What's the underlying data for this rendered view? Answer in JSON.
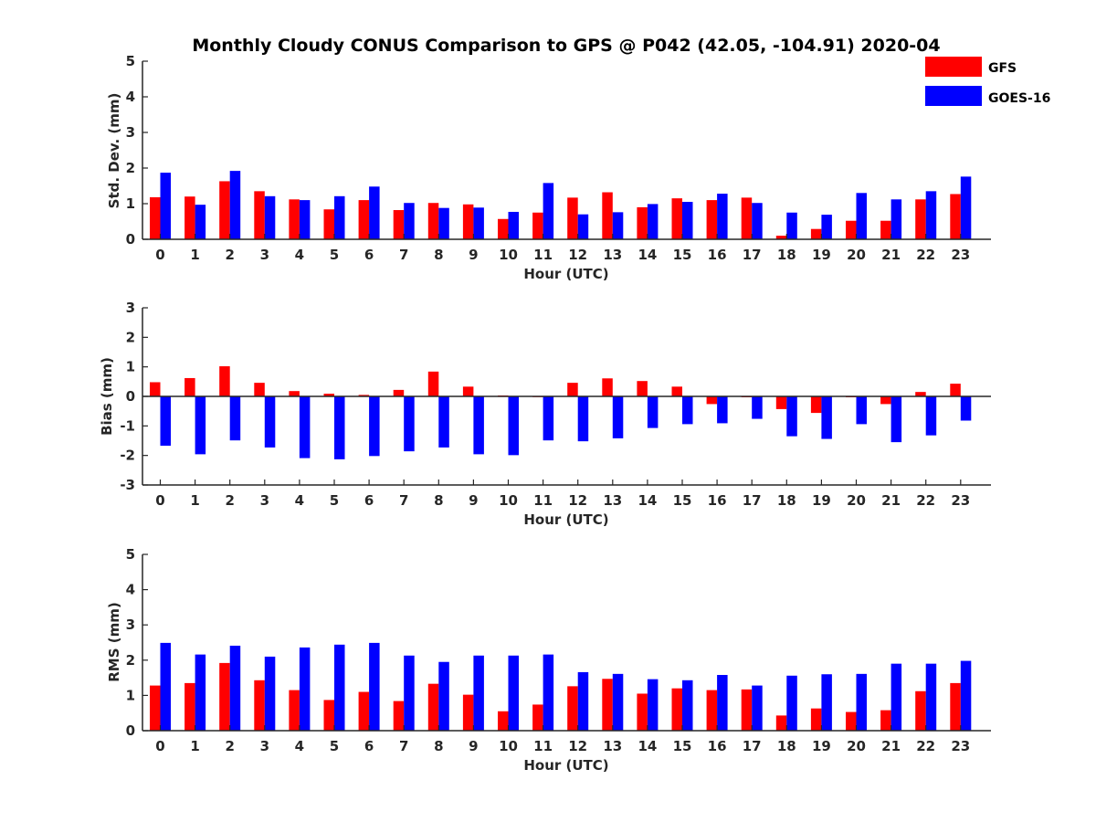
{
  "title": "Monthly Cloudy CONUS Comparison to GPS @ P042 (42.05, -104.91) 2020-04",
  "colors": {
    "gfs": "#ff0000",
    "goes": "#0000ff",
    "axis": "#262626"
  },
  "legend": [
    {
      "name": "GFS",
      "color": "#ff0000"
    },
    {
      "name": "GOES-16",
      "color": "#0000ff"
    }
  ],
  "chart_data": [
    {
      "type": "bar",
      "id": "std",
      "xlabel": "Hour (UTC)",
      "ylabel": "Std. Dev. (mm)",
      "ylim": [
        0,
        5
      ],
      "yticks": [
        0,
        1,
        2,
        3,
        4,
        5
      ],
      "categories": [
        "0",
        "1",
        "2",
        "3",
        "4",
        "5",
        "6",
        "7",
        "8",
        "9",
        "10",
        "11",
        "12",
        "13",
        "14",
        "15",
        "16",
        "17",
        "18",
        "19",
        "20",
        "21",
        "22",
        "23"
      ],
      "series": [
        {
          "name": "GFS",
          "values": [
            1.18,
            1.2,
            1.63,
            1.35,
            1.12,
            0.84,
            1.1,
            0.82,
            1.02,
            0.98,
            0.57,
            0.75,
            1.17,
            1.32,
            0.9,
            1.15,
            1.1,
            1.17,
            0.1,
            0.29,
            0.52,
            0.52,
            1.12,
            1.27
          ]
        },
        {
          "name": "GOES-16",
          "values": [
            1.87,
            0.97,
            1.92,
            1.21,
            1.1,
            1.21,
            1.48,
            1.02,
            0.88,
            0.89,
            0.77,
            1.58,
            0.7,
            0.76,
            0.99,
            1.05,
            1.28,
            1.02,
            0.75,
            0.69,
            1.3,
            1.12,
            1.35,
            1.76
          ]
        }
      ]
    },
    {
      "type": "bar",
      "id": "bias",
      "xlabel": "Hour (UTC)",
      "ylabel": "Bias (mm)",
      "ylim": [
        -3,
        3
      ],
      "yticks": [
        -3,
        -2,
        -1,
        0,
        1,
        2,
        3
      ],
      "categories": [
        "0",
        "1",
        "2",
        "3",
        "4",
        "5",
        "6",
        "7",
        "8",
        "9",
        "10",
        "11",
        "12",
        "13",
        "14",
        "15",
        "16",
        "17",
        "18",
        "19",
        "20",
        "21",
        "22",
        "23"
      ],
      "series": [
        {
          "name": "GFS",
          "values": [
            0.48,
            0.62,
            1.02,
            0.46,
            0.18,
            0.09,
            0.05,
            0.22,
            0.84,
            0.33,
            0.03,
            0.0,
            0.46,
            0.61,
            0.52,
            0.33,
            -0.26,
            -0.03,
            -0.43,
            -0.56,
            -0.03,
            -0.26,
            0.15,
            0.43
          ]
        },
        {
          "name": "GOES-16",
          "values": [
            -1.67,
            -1.96,
            -1.49,
            -1.73,
            -2.09,
            -2.13,
            -2.02,
            -1.86,
            -1.73,
            -1.96,
            -1.99,
            -1.49,
            -1.52,
            -1.42,
            -1.07,
            -0.94,
            -0.91,
            -0.76,
            -1.35,
            -1.44,
            -0.94,
            -1.55,
            -1.32,
            -0.82
          ]
        }
      ]
    },
    {
      "type": "bar",
      "id": "rms",
      "xlabel": "Hour (UTC)",
      "ylabel": "RMS (mm)",
      "ylim": [
        0,
        5
      ],
      "yticks": [
        0,
        1,
        2,
        3,
        4,
        5
      ],
      "categories": [
        "0",
        "1",
        "2",
        "3",
        "4",
        "5",
        "6",
        "7",
        "8",
        "9",
        "10",
        "11",
        "12",
        "13",
        "14",
        "15",
        "16",
        "17",
        "18",
        "19",
        "20",
        "21",
        "22",
        "23"
      ],
      "series": [
        {
          "name": "GFS",
          "values": [
            1.28,
            1.35,
            1.92,
            1.43,
            1.15,
            0.87,
            1.1,
            0.84,
            1.33,
            1.02,
            0.55,
            0.74,
            1.26,
            1.47,
            1.05,
            1.2,
            1.15,
            1.17,
            0.43,
            0.63,
            0.53,
            0.58,
            1.12,
            1.35
          ]
        },
        {
          "name": "GOES-16",
          "values": [
            2.49,
            2.16,
            2.41,
            2.1,
            2.36,
            2.44,
            2.49,
            2.13,
            1.95,
            2.13,
            2.13,
            2.16,
            1.66,
            1.61,
            1.46,
            1.43,
            1.58,
            1.28,
            1.56,
            1.6,
            1.61,
            1.9,
            1.9,
            1.98
          ]
        }
      ]
    }
  ]
}
